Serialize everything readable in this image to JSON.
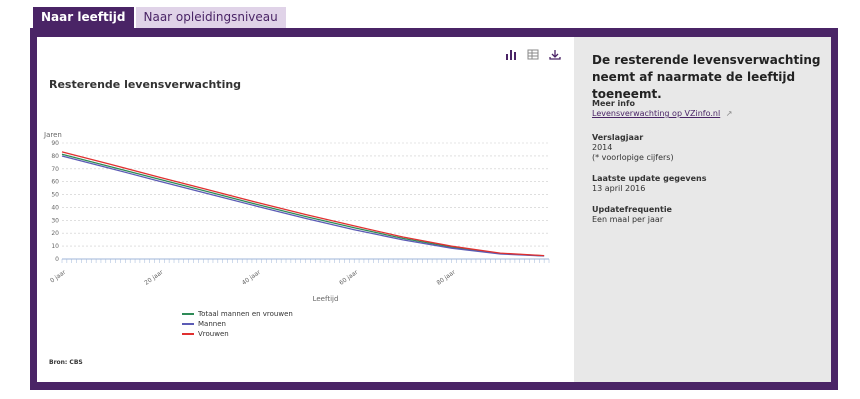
{
  "tabs": [
    {
      "label": "Naar leeftijd"
    },
    {
      "label": "Naar opleidingsniveau"
    }
  ],
  "toolbar": {
    "chart_icon": "bar-chart-icon",
    "table_icon": "table-icon",
    "download_icon": "download-icon"
  },
  "chart_title": "Resterende levensverwachting",
  "source": "Bron: CBS",
  "info": {
    "headline": "De resterende levensverwachting neemt af naarmate de leeftijd toeneemt.",
    "meer_info_label": "Meer info",
    "meer_info_link": "Levensverwachting op VZinfo.nl",
    "verslagjaar_label": "Verslagjaar",
    "verslagjaar_value": "2014",
    "verslagjaar_note": "(* voorlopige cijfers)",
    "update_label": "Laatste update gegevens",
    "update_value": "13 april 2016",
    "freq_label": "Updatefrequentie",
    "freq_value": "Een maal per jaar"
  },
  "colors": {
    "brand": "#4a2466",
    "totaal": "#2e8b57",
    "mannen": "#5b5bb5",
    "vrouwen": "#e03030"
  },
  "chart_data": {
    "type": "line",
    "title": "Resterende levensverwachting",
    "ylabel": "Jaren",
    "xlabel": "Leeftijd",
    "ylim": [
      0,
      90
    ],
    "yticks": [
      0,
      10,
      20,
      30,
      40,
      50,
      60,
      70,
      80,
      90
    ],
    "xlim": [
      0,
      100
    ],
    "xticks": [
      0,
      20,
      40,
      60,
      80
    ],
    "xtick_labels": [
      "0 jaar",
      "20 jaar",
      "40 jaar",
      "60 jaar",
      "80 jaar"
    ],
    "x": [
      0,
      10,
      20,
      30,
      40,
      50,
      60,
      70,
      80,
      90,
      99
    ],
    "series": [
      {
        "name": "Totaal mannen en vrouwen",
        "values": [
          81.3,
          71.6,
          61.8,
          52.1,
          42.4,
          33.0,
          24.2,
          16.0,
          9.2,
          4.3,
          2.5
        ]
      },
      {
        "name": "Mannen",
        "values": [
          79.9,
          70.2,
          60.4,
          50.7,
          41.0,
          31.5,
          22.7,
          14.8,
          8.4,
          3.9,
          2.3
        ]
      },
      {
        "name": "Vrouwen",
        "values": [
          83.1,
          73.4,
          63.5,
          53.7,
          43.9,
          34.5,
          25.7,
          17.1,
          9.9,
          4.6,
          2.6
        ]
      }
    ],
    "grid": true,
    "legend": "bottom"
  }
}
